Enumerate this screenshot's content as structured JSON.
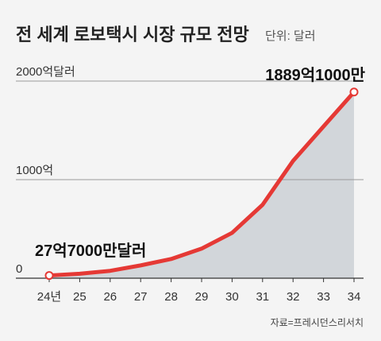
{
  "chart_data": {
    "type": "line",
    "title": "전 세계 로보택시 시장 규모 전망",
    "unit": "단위: 달러",
    "source": "자료=프레시던스리서치",
    "categories": [
      "24년",
      "25",
      "26",
      "27",
      "28",
      "29",
      "30",
      "31",
      "32",
      "33",
      "34"
    ],
    "series": [
      {
        "name": "시장 규모",
        "color": "#e53935",
        "area_color": "#d2d6da",
        "values": [
          27.7,
          45,
          75,
          130,
          195,
          300,
          460,
          745,
          1190,
          1540,
          1889.1
        ],
        "value_labels": [
          "27억7000만달러",
          null,
          null,
          null,
          null,
          null,
          null,
          null,
          null,
          null,
          "1889억1000만"
        ]
      }
    ],
    "ylim": [
      0,
      2000
    ],
    "yticks": [
      0,
      {
        "value": 1000,
        "label": "1000억"
      },
      {
        "value": 2000,
        "label": "2000억달러"
      }
    ],
    "grid": true
  }
}
